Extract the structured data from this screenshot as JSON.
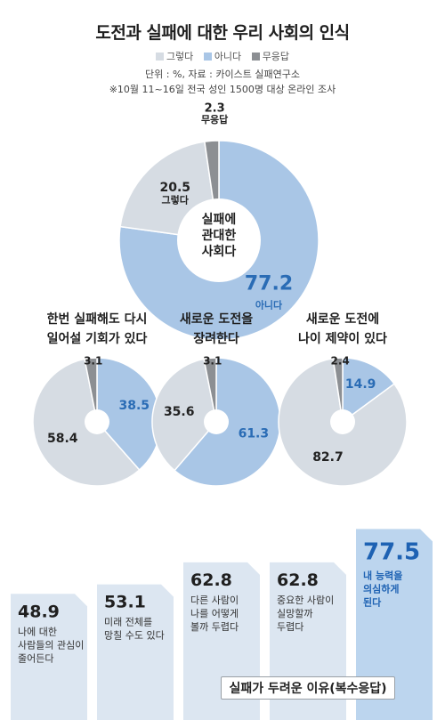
{
  "title": "도전과 실패에 대한 우리 사회의 인식",
  "legend": [
    {
      "label": "그렇다",
      "color": "#d6dce3"
    },
    {
      "label": "아니다",
      "color": "#a9c6e6"
    },
    {
      "label": "무응답",
      "color": "#8c8f93"
    }
  ],
  "unit_note": "단위 : %, 자료 : 카이스트 실패연구소",
  "survey_note": "※10월 11~16일 전국 성인 1500명 대상 온라인 조사",
  "chart_data": [
    {
      "type": "pie",
      "title": "실패에 관대한 사회다",
      "center_lines": [
        "실패에",
        "관대한",
        "사회다"
      ],
      "slices": [
        {
          "name": "아니다",
          "value": 77.2,
          "label": "77.2",
          "sublabel": "아니다"
        },
        {
          "name": "그렇다",
          "value": 20.5,
          "label": "20.5",
          "sublabel": "그렇다"
        },
        {
          "name": "무응답",
          "value": 2.3,
          "label": "2.3",
          "sublabel": "무응답"
        }
      ]
    },
    {
      "type": "pie",
      "title_lines": [
        "한번 실패해도 다시",
        "일어설 기회가 있다"
      ],
      "slices": [
        {
          "name": "아니다",
          "value": 38.5,
          "label": "38.5"
        },
        {
          "name": "그렇다",
          "value": 58.4,
          "label": "58.4"
        },
        {
          "name": "무응답",
          "value": 3.1,
          "label": "3.1"
        }
      ]
    },
    {
      "type": "pie",
      "title_lines": [
        "새로운 도전을",
        "장려한다"
      ],
      "slices": [
        {
          "name": "아니다",
          "value": 61.3,
          "label": "61.3"
        },
        {
          "name": "그렇다",
          "value": 35.6,
          "label": "35.6"
        },
        {
          "name": "무응답",
          "value": 3.1,
          "label": "3.1"
        }
      ]
    },
    {
      "type": "pie",
      "title_lines": [
        "새로운 도전에",
        "나이 제약이 있다"
      ],
      "slices": [
        {
          "name": "아니다",
          "value": 14.9,
          "label": "14.9"
        },
        {
          "name": "그렇다",
          "value": 82.7,
          "label": "82.7"
        },
        {
          "name": "무응답",
          "value": 2.4,
          "label": "2.4"
        }
      ]
    },
    {
      "type": "bar",
      "title": "실패가 두려운 이유(복수응답)",
      "categories": [
        [
          "나에 대한",
          "사람들의 관심이",
          "줄어든다"
        ],
        [
          "미래 전체를",
          "망칠 수도 있다"
        ],
        [
          "다른 사람이",
          "나를 어떻게",
          "볼까 두렵다"
        ],
        [
          "중요한 사람이",
          "실망할까",
          "두렵다"
        ],
        [
          "내 능력을",
          "의심하게",
          "된다"
        ]
      ],
      "values": [
        48.9,
        53.1,
        62.8,
        62.8,
        77.5
      ],
      "value_labels": [
        "48.9",
        "53.1",
        "62.8",
        "62.8",
        "77.5"
      ]
    }
  ]
}
